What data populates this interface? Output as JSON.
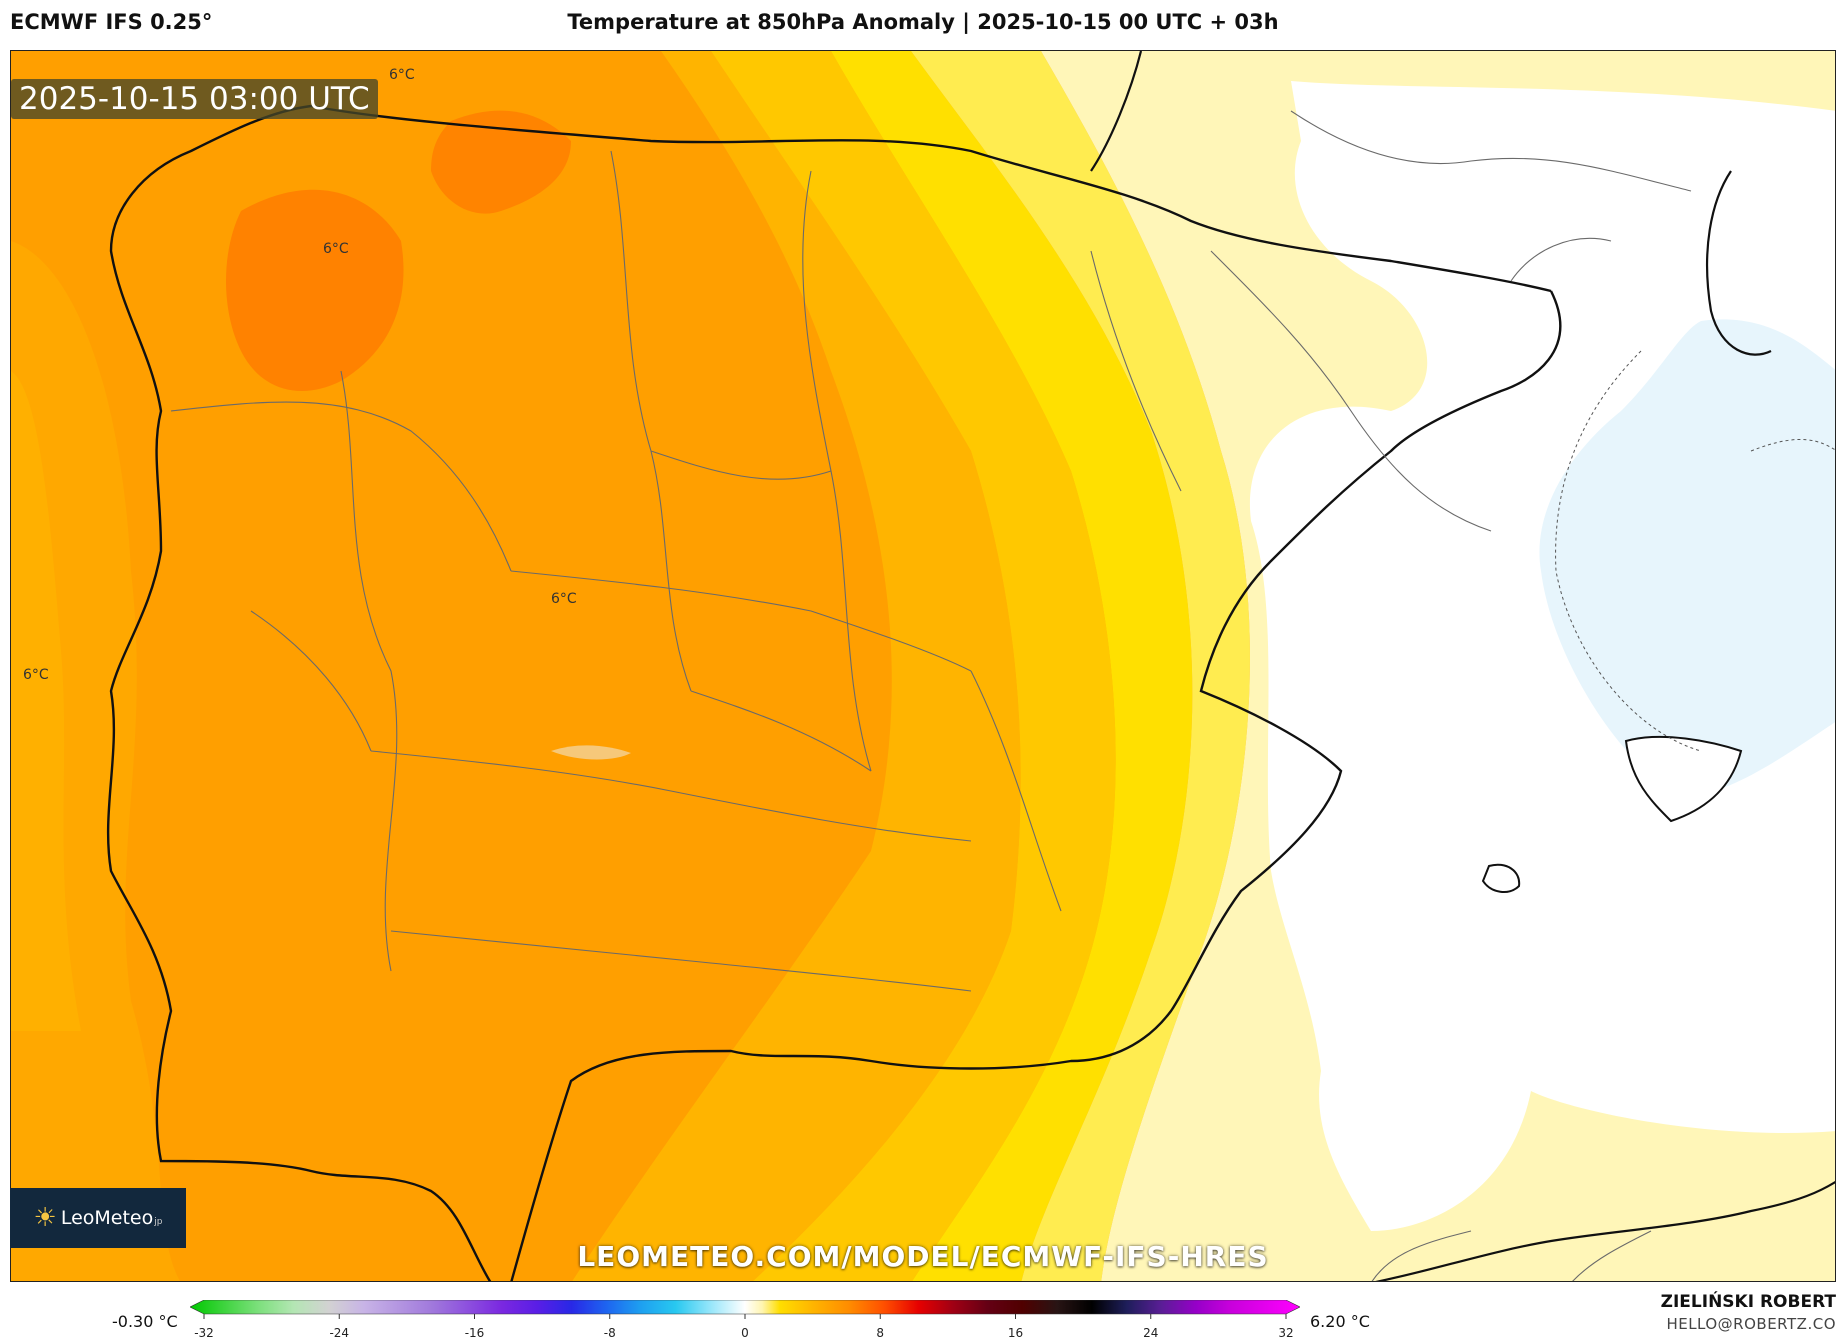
{
  "header": {
    "model": "ECMWF IFS 0.25°",
    "title": "Temperature at 850hPa Anomaly | 2025-10-15 00 UTC + 03h"
  },
  "map": {
    "timestamp": "2025-10-15 03:00 UTC",
    "isoline_labels": [
      "6°C",
      "6°C",
      "6°C",
      "6°C"
    ],
    "fill_colors": {
      "dark_orange": "#ff8c00",
      "orange": "#ffa500",
      "orange_light": "#ffb300",
      "amber": "#ffc400",
      "yellow": "#ffde00",
      "yellow_light": "#ffec44",
      "pale_yellow": "#fff5b0",
      "white": "#ffffff",
      "light_blue": "#e6f4fc"
    }
  },
  "logo": {
    "text": "LeoMeteo",
    "suffix": "jp"
  },
  "watermark": "LEOMETEO.COM/MODEL/ECMWF-IFS-HRES",
  "colorbar": {
    "min_label": "-0.30 °C",
    "max_label": "6.20 °C",
    "ticks": [
      "-32",
      "-24",
      "-16",
      "-8",
      "0",
      "8",
      "16",
      "24",
      "32"
    ],
    "range": [
      -32,
      32
    ],
    "stops": [
      {
        "v": -32,
        "c": "#00c800"
      },
      {
        "v": -28,
        "c": "#7ee07e"
      },
      {
        "v": -26,
        "c": "#b4e6b4"
      },
      {
        "v": -24,
        "c": "#d2d2d2"
      },
      {
        "v": -22,
        "c": "#c8b4e6"
      },
      {
        "v": -18,
        "c": "#a078dc"
      },
      {
        "v": -14,
        "c": "#7a28e0"
      },
      {
        "v": -12,
        "c": "#5a1ee6"
      },
      {
        "v": -10,
        "c": "#2828e6"
      },
      {
        "v": -8,
        "c": "#1e64f0"
      },
      {
        "v": -6,
        "c": "#1ea0f0"
      },
      {
        "v": -4,
        "c": "#28c8f0"
      },
      {
        "v": -2,
        "c": "#96e6fa"
      },
      {
        "v": 0,
        "c": "#ffffff"
      },
      {
        "v": 1,
        "c": "#fff5b0"
      },
      {
        "v": 2,
        "c": "#ffde00"
      },
      {
        "v": 4,
        "c": "#ffb300"
      },
      {
        "v": 6,
        "c": "#ff8c00"
      },
      {
        "v": 8,
        "c": "#ff5000"
      },
      {
        "v": 10,
        "c": "#e60000"
      },
      {
        "v": 12,
        "c": "#a00014"
      },
      {
        "v": 14,
        "c": "#640014"
      },
      {
        "v": 16,
        "c": "#500000"
      },
      {
        "v": 18,
        "c": "#281414"
      },
      {
        "v": 20,
        "c": "#000000"
      },
      {
        "v": 22,
        "c": "#1e1e5a"
      },
      {
        "v": 24,
        "c": "#5a1e96"
      },
      {
        "v": 26,
        "c": "#9600c8"
      },
      {
        "v": 28,
        "c": "#c800dc"
      },
      {
        "v": 32,
        "c": "#ff00ff"
      }
    ]
  },
  "credit": {
    "name": "ZIELIŃSKI ROBERT",
    "email": "HELLO@ROBERTZ.CO"
  }
}
